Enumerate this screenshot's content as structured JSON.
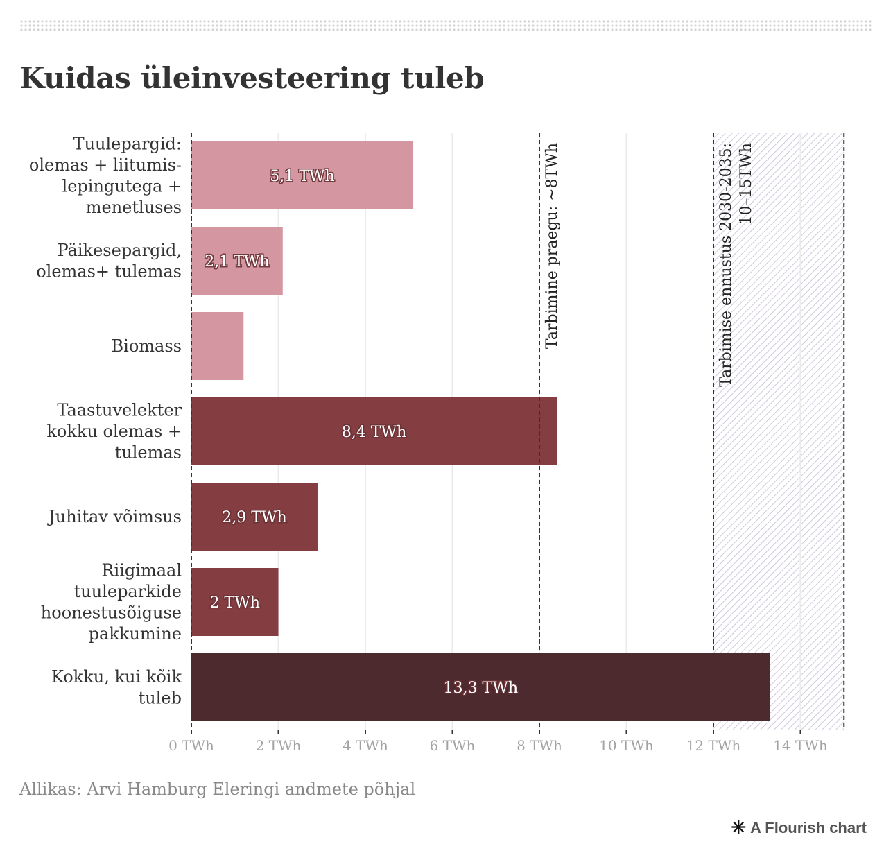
{
  "title": "Kuidas üleinvesteering tuleb",
  "source": "Allikas: Arvi Hamburg Eleringi andmete põhjal",
  "branding": {
    "label": "A Flourish chart",
    "icon": "flourish-asterisk-icon"
  },
  "chart_data": {
    "type": "bar",
    "orientation": "horizontal",
    "title": "Kuidas üleinvesteering tuleb",
    "xlabel": "",
    "ylabel": "",
    "xlim": [
      0,
      15
    ],
    "x_ticks": [
      0,
      2,
      4,
      6,
      8,
      10,
      12,
      14
    ],
    "x_tick_labels": [
      "0 TWh",
      "2 TWh",
      "4 TWh",
      "6 TWh",
      "8 TWh",
      "10 TWh",
      "12 TWh",
      "14 TWh"
    ],
    "grid": true,
    "categories": [
      [
        "Tuulepargid:",
        "olemas + liitumis-",
        "lepingutega +",
        "menetluses"
      ],
      [
        "Päikesepargid,",
        "olemas+ tulemas"
      ],
      [
        "Biomass"
      ],
      [
        "Taastuvelekter",
        "kokku olemas +",
        "tulemas"
      ],
      [
        "Juhitav võimsus"
      ],
      [
        "Riigimaal",
        "tuuleparkide",
        "hoonestusõiguse",
        "pakkumine"
      ],
      [
        "Kokku, kui kõik",
        "tuleb"
      ]
    ],
    "values": [
      5.1,
      2.1,
      1.2,
      8.4,
      2.9,
      2.0,
      13.3
    ],
    "value_labels": [
      "5,1 TWh",
      "2,1 TWh",
      "",
      "8,4 TWh",
      "2,9 TWh",
      "2 TWh",
      "13,3 TWh"
    ],
    "colors": [
      "#d497a1",
      "#d497a1",
      "#d497a1",
      "#843e42",
      "#843e42",
      "#843e42",
      "#4d2a2e"
    ],
    "reference_lines": [
      {
        "value": 8,
        "label": [
          "Tarbimine praegu: ~8TWh"
        ]
      },
      {
        "value": 12,
        "label": [
          "Tarbimise ennustus 2030-2035:",
          "10–15TWh"
        ]
      },
      {
        "value": 15,
        "label": []
      }
    ],
    "shaded_range": {
      "from": 12,
      "to": 15,
      "color": "#c9c2d6"
    }
  }
}
